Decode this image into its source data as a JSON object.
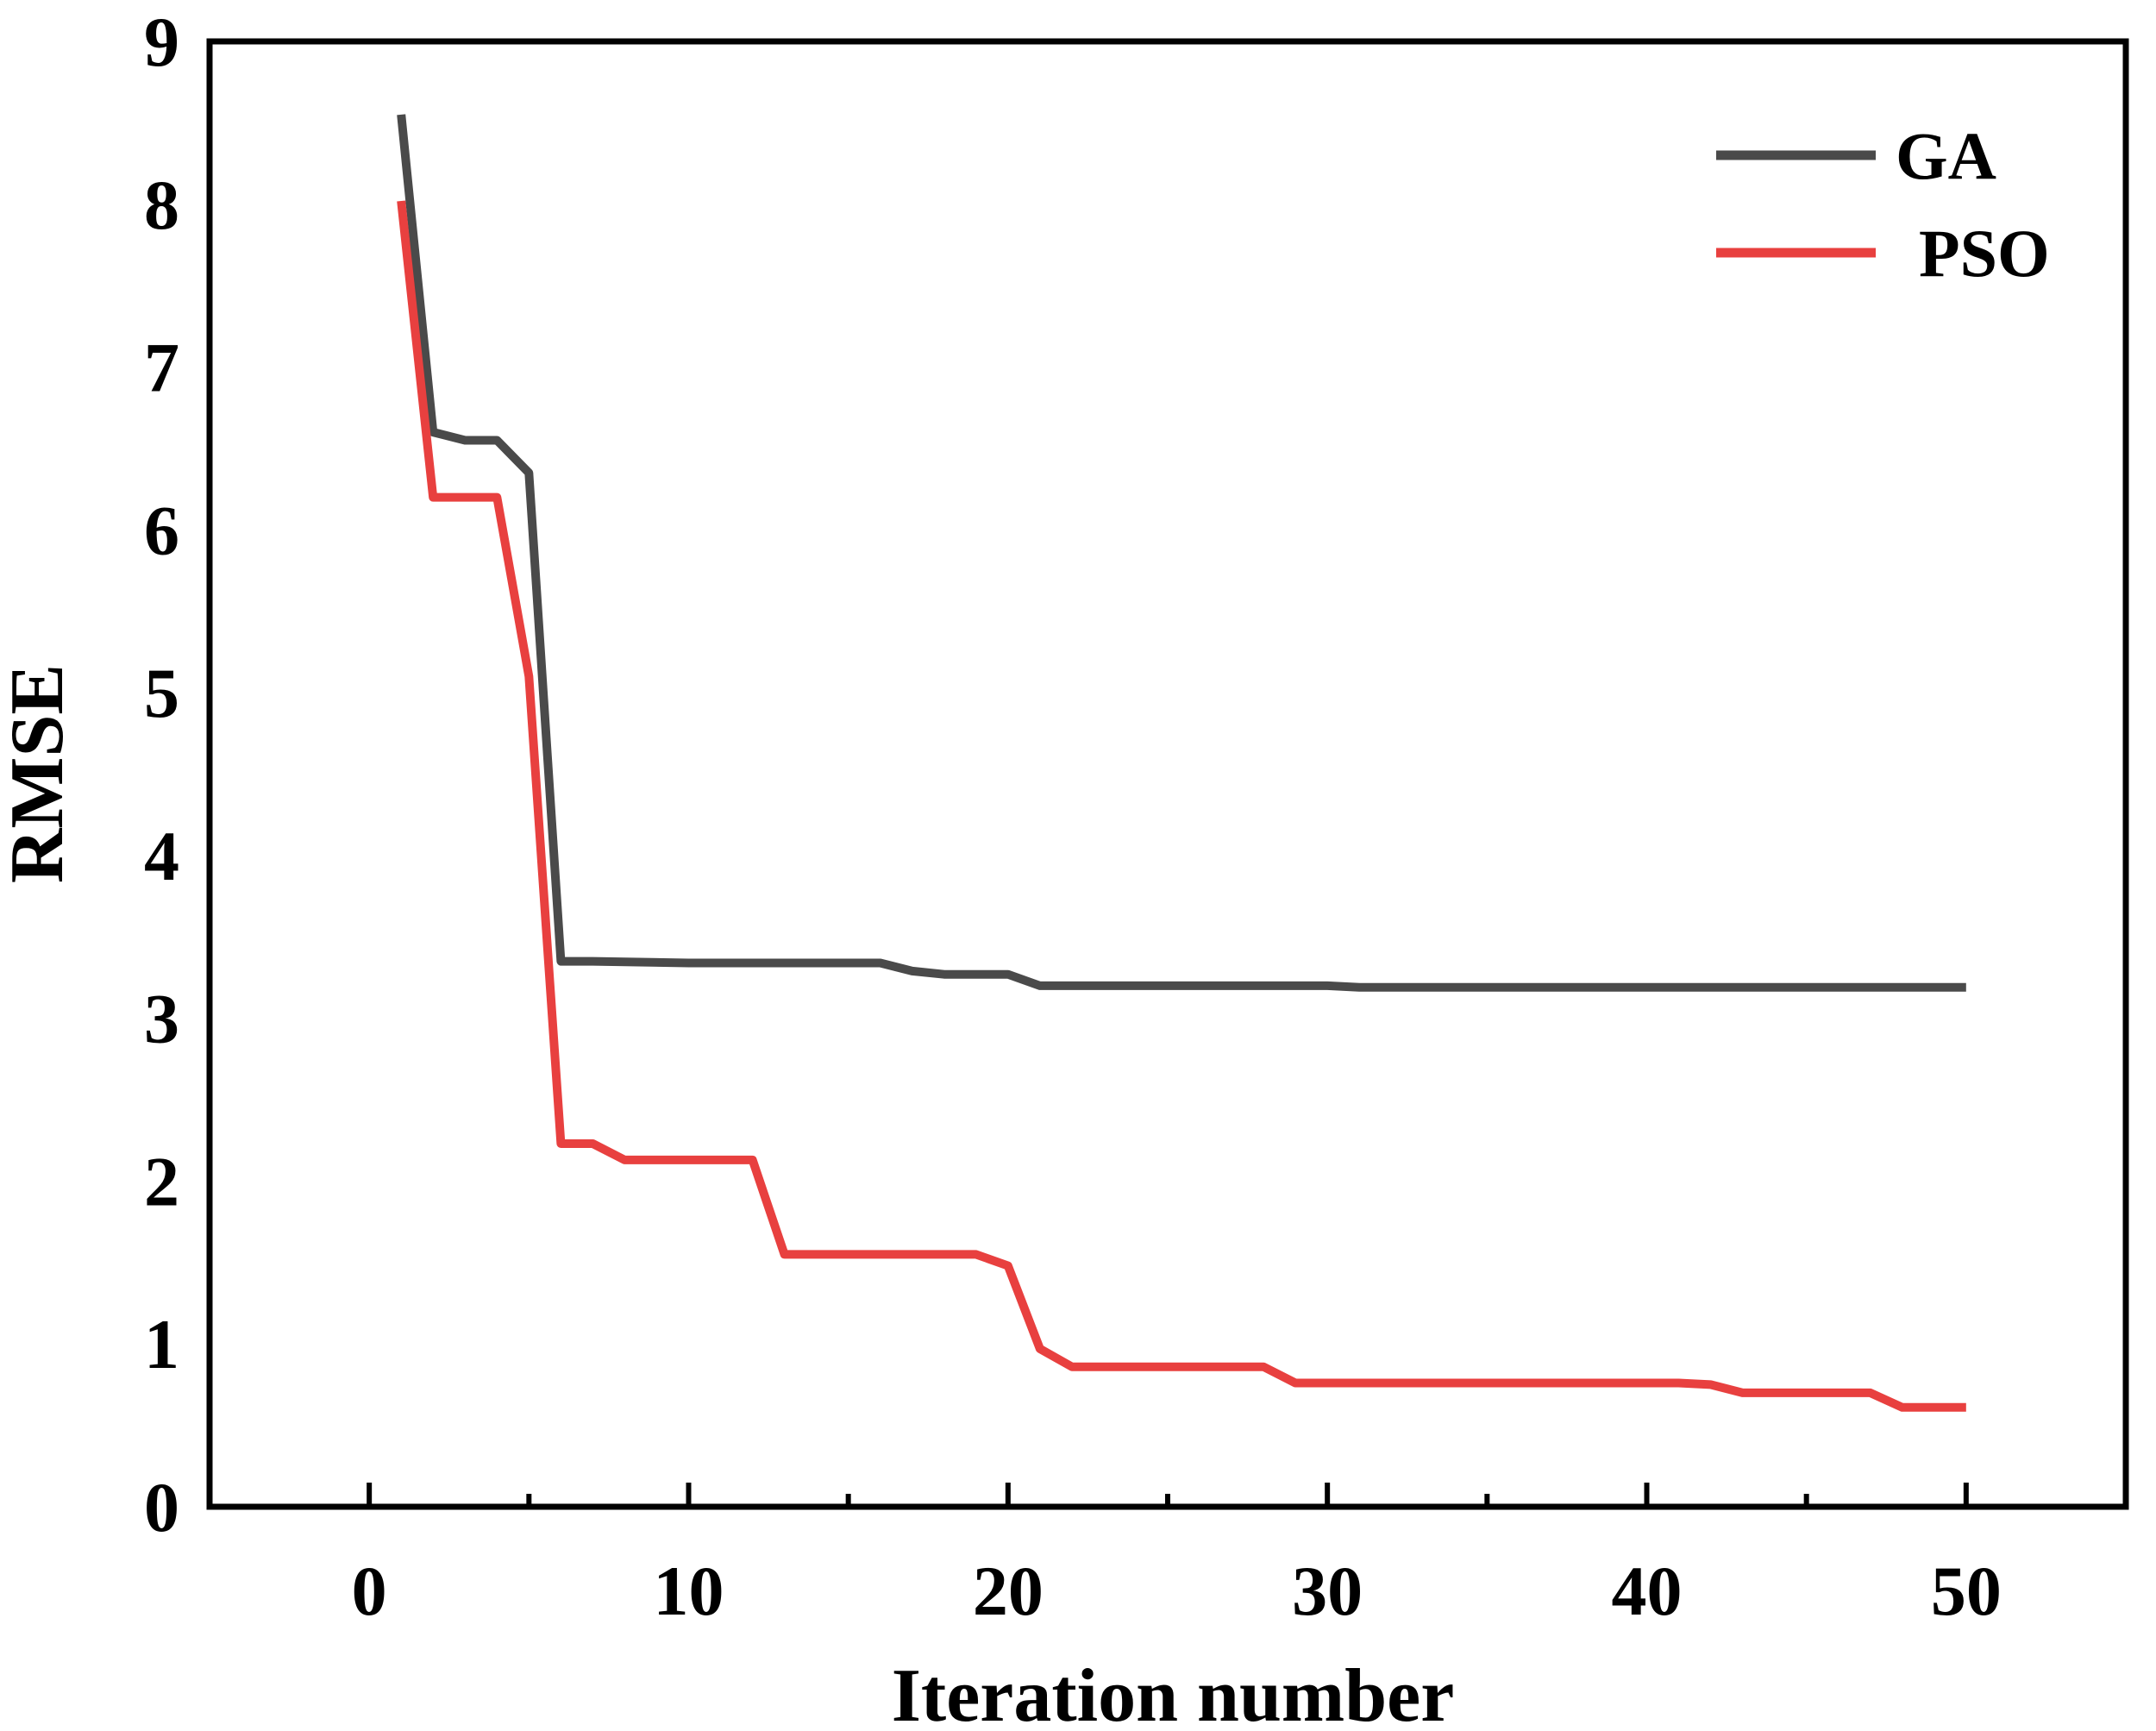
{
  "chart_data": {
    "type": "line",
    "xlabel": "Iteration number",
    "ylabel": "RMSE",
    "xlim": [
      -5,
      55
    ],
    "ylim": [
      0,
      9
    ],
    "x_ticks": [
      0,
      10,
      20,
      30,
      40,
      50
    ],
    "x_minor_ticks": [
      5,
      15,
      25,
      35,
      45
    ],
    "y_ticks": [
      0,
      1,
      2,
      3,
      4,
      5,
      6,
      7,
      8,
      9
    ],
    "grid": false,
    "legend_position": "top-right",
    "series": [
      {
        "name": "GA",
        "color": "#4a4a4a",
        "points": [
          [
            1,
            8.55
          ],
          [
            2,
            6.6
          ],
          [
            3,
            6.55
          ],
          [
            4,
            6.55
          ],
          [
            5,
            6.35
          ],
          [
            6,
            3.35
          ],
          [
            7,
            3.35
          ],
          [
            10,
            3.34
          ],
          [
            16,
            3.34
          ],
          [
            17,
            3.29
          ],
          [
            18,
            3.27
          ],
          [
            20,
            3.27
          ],
          [
            21,
            3.2
          ],
          [
            30,
            3.2
          ],
          [
            31,
            3.19
          ],
          [
            50,
            3.19
          ]
        ]
      },
      {
        "name": "PSO",
        "color": "#e8403f",
        "points": [
          [
            1,
            8.02
          ],
          [
            2,
            6.2
          ],
          [
            3,
            6.2
          ],
          [
            4,
            6.2
          ],
          [
            5,
            5.1
          ],
          [
            6,
            2.23
          ],
          [
            7,
            2.23
          ],
          [
            8,
            2.13
          ],
          [
            11,
            2.13
          ],
          [
            12,
            2.13
          ],
          [
            13,
            1.55
          ],
          [
            17,
            1.55
          ],
          [
            19,
            1.55
          ],
          [
            20,
            1.48
          ],
          [
            21,
            0.97
          ],
          [
            22,
            0.86
          ],
          [
            24,
            0.86
          ],
          [
            28,
            0.86
          ],
          [
            29,
            0.76
          ],
          [
            41,
            0.76
          ],
          [
            42,
            0.75
          ],
          [
            43,
            0.7
          ],
          [
            47,
            0.7
          ],
          [
            48,
            0.61
          ],
          [
            50,
            0.61
          ]
        ]
      }
    ]
  }
}
